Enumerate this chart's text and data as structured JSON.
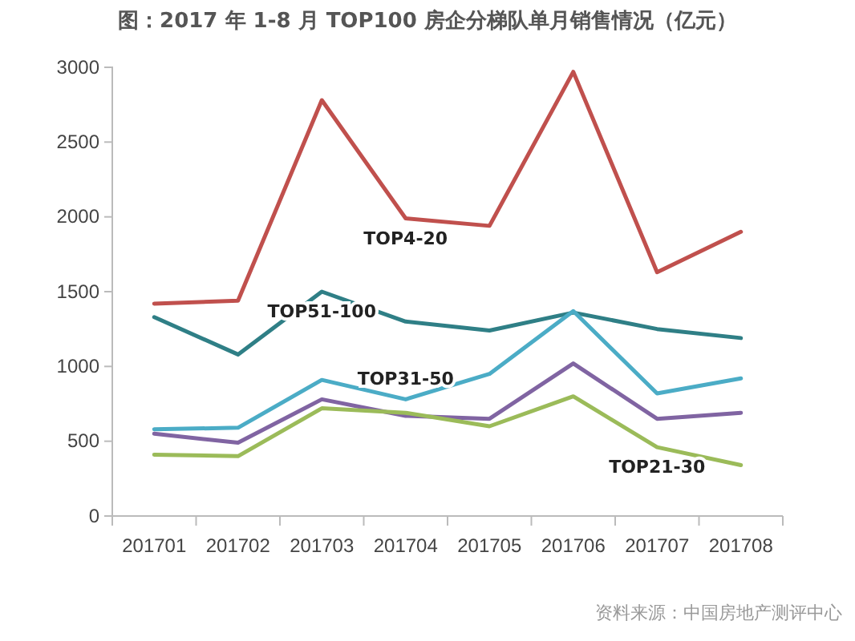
{
  "chart_data": {
    "type": "line",
    "title": "图：2017 年 1-8 月 TOP100 房企分梯队单月销售情况（亿元）",
    "categories": [
      "201701",
      "201702",
      "201703",
      "201704",
      "201705",
      "201706",
      "201707",
      "201708"
    ],
    "series": [
      {
        "name": "TOP4-20",
        "color": "#c0504d",
        "values": [
          1420,
          1440,
          2780,
          1990,
          1940,
          2970,
          1630,
          1900
        ]
      },
      {
        "name": "TOP51-100",
        "color": "#2f7f86",
        "values": [
          1330,
          1080,
          1500,
          1300,
          1240,
          1360,
          1250,
          1190
        ]
      },
      {
        "name": "TOP31-50",
        "color": "#4bacc6",
        "values": [
          580,
          590,
          910,
          780,
          950,
          1370,
          820,
          920
        ]
      },
      {
        "color": "#8064a2",
        "values": [
          550,
          490,
          780,
          670,
          650,
          1020,
          650,
          690
        ]
      },
      {
        "name": "TOP21-30",
        "color": "#9bbb59",
        "values": [
          410,
          400,
          720,
          690,
          600,
          800,
          460,
          340
        ]
      }
    ],
    "ylim": [
      0,
      3000
    ],
    "yticks": [
      0,
      500,
      1000,
      1500,
      2000,
      2500,
      3000
    ],
    "grid": false,
    "legend": false,
    "marker": "none",
    "line_style": "solid",
    "annotations": [
      "资料来源：中国房地产测评中心"
    ]
  }
}
